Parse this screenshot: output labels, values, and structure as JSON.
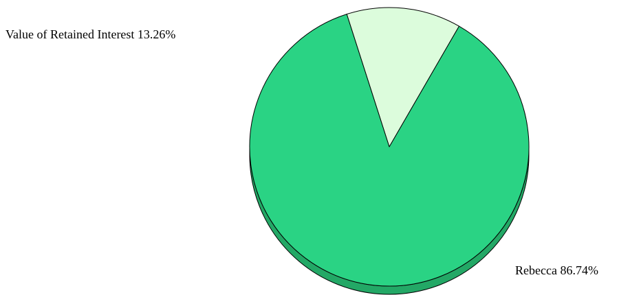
{
  "chart_data": {
    "type": "pie",
    "style": "3d",
    "slices": [
      {
        "label": "Value of Retained Interest",
        "value": 13.26,
        "display": "13.26%",
        "color": "#dcfcdc",
        "side_color": "#b8dcb8"
      },
      {
        "label": "Rebecca",
        "value": 86.74,
        "display": "86.74%",
        "color": "#2ad384",
        "side_color": "#23a866"
      }
    ],
    "unit": "%"
  }
}
